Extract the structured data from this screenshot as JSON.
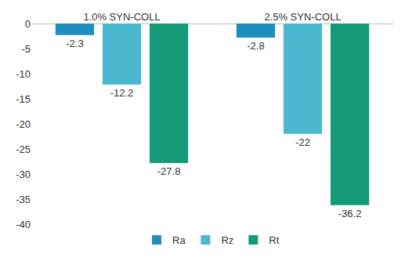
{
  "chart_data": {
    "type": "bar",
    "categories": [
      "1.0% SYN-COLL",
      "2.5% SYN-COLL"
    ],
    "series": [
      {
        "name": "Ra",
        "color": "#1f8ebf",
        "values": [
          -2.3,
          -2.8
        ]
      },
      {
        "name": "Rz",
        "color": "#4bb8cf",
        "values": [
          -12.2,
          -22
        ]
      },
      {
        "name": "Rt",
        "color": "#149a78",
        "values": [
          -27.8,
          -36.2
        ]
      }
    ],
    "ylim": [
      -40,
      0
    ],
    "yticks": [
      0,
      -5,
      -10,
      -15,
      -20,
      -25,
      -30,
      -35,
      -40
    ],
    "grid": false,
    "legend": "bottom",
    "data_labels": true
  }
}
